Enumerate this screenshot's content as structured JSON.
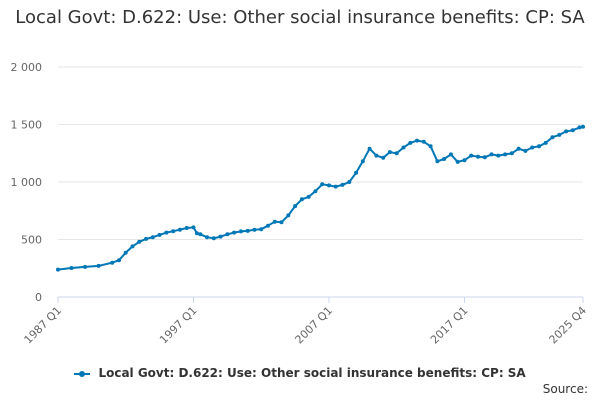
{
  "title": "Local Govt: D.622: Use: Other social insurance benefits: CP: SA",
  "source": "Source:",
  "colors": {
    "series": "#0077b6",
    "grid": "#e6e6e6",
    "axis": "#ccd6eb",
    "text": "#333333",
    "label": "#666666"
  },
  "chart_data": {
    "type": "line",
    "title": "Local Govt: D.622: Use: Other social insurance benefits: CP: SA",
    "xlabel": "",
    "ylabel": "",
    "ylim": [
      0,
      2000
    ],
    "yticks": [
      0,
      500,
      1000,
      1500,
      2000
    ],
    "ytick_labels": [
      "0",
      "500",
      "1 000",
      "1 500",
      "2 000"
    ],
    "xtick_labels": [
      "1987 Q1",
      "1997 Q1",
      "2007 Q1",
      "2017 Q1",
      "2025 Q4"
    ],
    "x_range": [
      "1987 Q1",
      "2025 Q4"
    ],
    "grid": "horizontal",
    "legend": "bottom",
    "markers": true,
    "series": [
      {
        "name": "Local Govt: D.622: Use: Other social insurance benefits: CP: SA",
        "points": [
          [
            "1987 Q1",
            238
          ],
          [
            "1988 Q1",
            252
          ],
          [
            "1989 Q1",
            262
          ],
          [
            "1990 Q1",
            270
          ],
          [
            "1991 Q1",
            298
          ],
          [
            "1991 Q3",
            320
          ],
          [
            "1992 Q1",
            385
          ],
          [
            "1992 Q3",
            440
          ],
          [
            "1993 Q1",
            480
          ],
          [
            "1993 Q3",
            505
          ],
          [
            "1994 Q1",
            520
          ],
          [
            "1994 Q3",
            540
          ],
          [
            "1995 Q1",
            560
          ],
          [
            "1995 Q3",
            572
          ],
          [
            "1996 Q1",
            585
          ],
          [
            "1996 Q3",
            600
          ],
          [
            "1997 Q1",
            605
          ],
          [
            "1997 Q2",
            555
          ],
          [
            "1997 Q3",
            545
          ],
          [
            "1998 Q1",
            520
          ],
          [
            "1998 Q3",
            510
          ],
          [
            "1999 Q1",
            525
          ],
          [
            "1999 Q3",
            545
          ],
          [
            "2000 Q1",
            560
          ],
          [
            "2000 Q3",
            570
          ],
          [
            "2001 Q1",
            575
          ],
          [
            "2001 Q3",
            585
          ],
          [
            "2002 Q1",
            590
          ],
          [
            "2002 Q3",
            620
          ],
          [
            "2003 Q1",
            655
          ],
          [
            "2003 Q3",
            650
          ],
          [
            "2004 Q1",
            710
          ],
          [
            "2004 Q3",
            790
          ],
          [
            "2005 Q1",
            850
          ],
          [
            "2005 Q3",
            870
          ],
          [
            "2006 Q1",
            920
          ],
          [
            "2006 Q3",
            980
          ],
          [
            "2007 Q1",
            970
          ],
          [
            "2007 Q3",
            960
          ],
          [
            "2008 Q1",
            975
          ],
          [
            "2008 Q3",
            1000
          ],
          [
            "2009 Q1",
            1080
          ],
          [
            "2009 Q3",
            1180
          ],
          [
            "2010 Q1",
            1290
          ],
          [
            "2010 Q3",
            1230
          ],
          [
            "2011 Q1",
            1210
          ],
          [
            "2011 Q3",
            1260
          ],
          [
            "2012 Q1",
            1250
          ],
          [
            "2012 Q3",
            1300
          ],
          [
            "2013 Q1",
            1340
          ],
          [
            "2013 Q3",
            1360
          ],
          [
            "2014 Q1",
            1350
          ],
          [
            "2014 Q3",
            1310
          ],
          [
            "2015 Q1",
            1180
          ],
          [
            "2015 Q3",
            1200
          ],
          [
            "2016 Q1",
            1240
          ],
          [
            "2016 Q3",
            1175
          ],
          [
            "2017 Q1",
            1190
          ],
          [
            "2017 Q3",
            1230
          ],
          [
            "2018 Q1",
            1220
          ],
          [
            "2018 Q3",
            1215
          ],
          [
            "2019 Q1",
            1240
          ],
          [
            "2019 Q3",
            1230
          ],
          [
            "2020 Q1",
            1240
          ],
          [
            "2020 Q3",
            1250
          ],
          [
            "2021 Q1",
            1290
          ],
          [
            "2021 Q3",
            1270
          ],
          [
            "2022 Q1",
            1300
          ],
          [
            "2022 Q3",
            1310
          ],
          [
            "2023 Q1",
            1340
          ],
          [
            "2023 Q3",
            1390
          ],
          [
            "2024 Q1",
            1410
          ],
          [
            "2024 Q3",
            1440
          ],
          [
            "2025 Q1",
            1450
          ],
          [
            "2025 Q3",
            1475
          ],
          [
            "2025 Q4",
            1480
          ]
        ]
      }
    ]
  }
}
